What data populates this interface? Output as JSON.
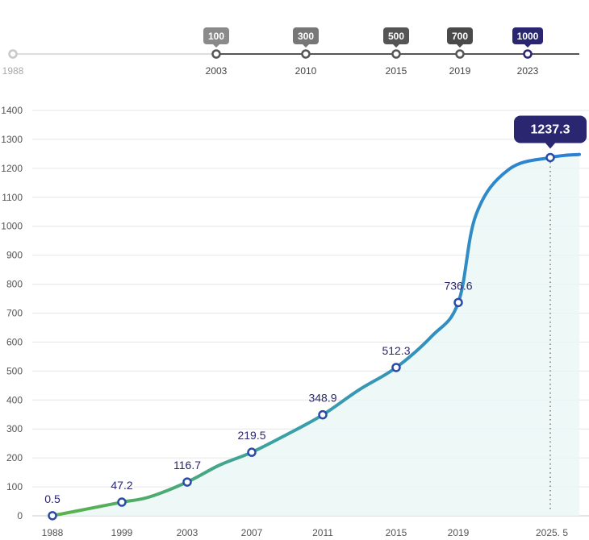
{
  "colors": {
    "grid": "#e6e6e6",
    "axis": "#cccccc",
    "line_start": "#5cb346",
    "line_mid": "#3aa0a8",
    "line_end": "#2a7fd6",
    "marker_stroke": "#2a4aa8",
    "label": "#2a2670",
    "callout_bg": "#2a2670",
    "area_fill": "#e9f6f5"
  },
  "milestones": {
    "start_year": "1988",
    "items": [
      {
        "badge": "100",
        "year": "2003",
        "color": "#8a8a8a"
      },
      {
        "badge": "300",
        "year": "2010",
        "color": "#777777"
      },
      {
        "badge": "500",
        "year": "2015",
        "color": "#555555"
      },
      {
        "badge": "700",
        "year": "2019",
        "color": "#4a4a4a"
      },
      {
        "badge": "1000",
        "year": "2023",
        "color": "#2a2670"
      }
    ]
  },
  "chart_data": {
    "type": "line",
    "ylim": [
      0,
      1400
    ],
    "yticks": [
      0,
      100,
      200,
      300,
      400,
      500,
      600,
      700,
      800,
      900,
      1000,
      1100,
      1200,
      1300,
      1400
    ],
    "x_labels": [
      "1988",
      "1999",
      "2003",
      "2007",
      "2011",
      "2015",
      "2019",
      "2025. 5"
    ],
    "grid": true,
    "points": [
      {
        "x": "1988",
        "y": 0.5,
        "label": "0.5"
      },
      {
        "x": "1999",
        "y": 47.2,
        "label": "47.2"
      },
      {
        "x": "2003",
        "y": 116.7,
        "label": "116.7"
      },
      {
        "x": "2007",
        "y": 219.5,
        "label": "219.5"
      },
      {
        "x": "2011",
        "y": 348.9,
        "label": "348.9"
      },
      {
        "x": "2015",
        "y": 512.3,
        "label": "512.3"
      },
      {
        "x": "2019",
        "y": 736.6,
        "label": "736.6"
      },
      {
        "x": "2025. 5",
        "y": 1237.3,
        "label": "1237.3",
        "highlight": true
      }
    ]
  }
}
